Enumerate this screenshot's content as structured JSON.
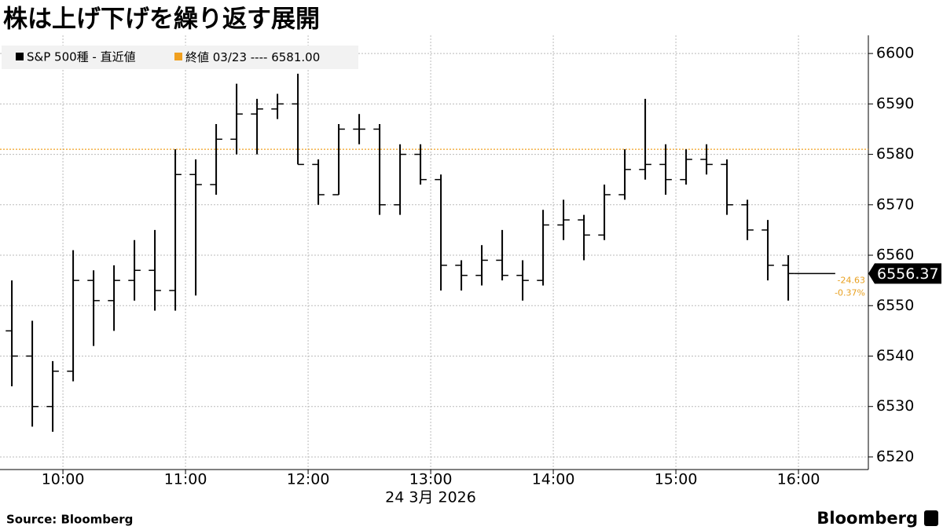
{
  "chart_data": {
    "type": "ohlc",
    "title": "株は上げ下げを繰り返す展開",
    "x_label": "24 3月 2026",
    "source": "Source:  Bloomberg",
    "brand": "Bloomberg",
    "xlim": [
      569.2,
      994.2
    ],
    "xticks": [
      {
        "value": 600,
        "label": "10:00"
      },
      {
        "value": 660,
        "label": "11:00"
      },
      {
        "value": 720,
        "label": "12:00"
      },
      {
        "value": 780,
        "label": "13:00"
      },
      {
        "value": 840,
        "label": "14:00"
      },
      {
        "value": 900,
        "label": "15:00"
      },
      {
        "value": 960,
        "label": "16:00"
      }
    ],
    "ylim": [
      6517.5,
      6603.6
    ],
    "yticks": [
      6520,
      6530,
      6540,
      6550,
      6560,
      6570,
      6580,
      6590,
      6600
    ],
    "grid": true,
    "series": [
      {
        "name": "S&P 500種 - 直近値",
        "color": "#000000",
        "x": [
          575,
          585,
          595,
          605,
          615,
          625,
          635,
          645,
          655,
          665,
          675,
          685,
          695,
          705,
          715,
          725,
          735,
          745,
          755,
          765,
          775,
          785,
          795,
          805,
          815,
          825,
          835,
          845,
          855,
          865,
          875,
          885,
          895,
          905,
          915,
          925,
          935,
          945,
          955
        ],
        "open": [
          6545,
          6540,
          6530,
          6537,
          6555,
          6551,
          6555,
          6557,
          6553,
          6576,
          6574,
          6583,
          6588,
          6589,
          6590,
          6578,
          6572,
          6585,
          6585,
          6570,
          6580,
          6575,
          6558,
          6556,
          6559,
          6556,
          6555,
          6566,
          6567,
          6564,
          6572,
          6577,
          6578,
          6575,
          6579,
          6578,
          6570,
          6565,
          6558
        ],
        "high": [
          6555,
          6547,
          6539,
          6561,
          6557,
          6558,
          6563,
          6565,
          6581,
          6579,
          6586,
          6594,
          6591,
          6592,
          6596,
          6579,
          6586,
          6588,
          6586,
          6582,
          6582,
          6576,
          6559,
          6562,
          6565,
          6559,
          6569,
          6571,
          6568,
          6574,
          6581,
          6591,
          6582,
          6581,
          6582,
          6579,
          6571,
          6567,
          6560
        ],
        "low": [
          6534,
          6526,
          6525,
          6535,
          6542,
          6545,
          6551,
          6549,
          6549,
          6552,
          6572,
          6580,
          6580,
          6587,
          6578,
          6570,
          6572,
          6582,
          6568,
          6568,
          6574,
          6553,
          6553,
          6554,
          6555,
          6551,
          6554,
          6563,
          6559,
          6563,
          6571,
          6575,
          6572,
          6574,
          6576,
          6568,
          6563,
          6555,
          6551
        ],
        "close": [
          6540,
          6530,
          6537,
          6555,
          6551,
          6555,
          6557,
          6553,
          6576,
          6574,
          6583,
          6588,
          6589,
          6590,
          6578,
          6572,
          6585,
          6585,
          6570,
          6580,
          6575,
          6558,
          6556,
          6559,
          6556,
          6555,
          6566,
          6567,
          6564,
          6572,
          6577,
          6578,
          6575,
          6579,
          6578,
          6570,
          6565,
          6558,
          6556.37
        ]
      }
    ],
    "reference_line": {
      "name": "終値 03/23 ----",
      "value": 6581,
      "value_label": "6581.00",
      "color": "#f0a020"
    },
    "last_value": 6556.37,
    "change": {
      "values": [
        -24.63,
        -0.37
      ],
      "value_labels": [
        "-24.63",
        "-0.37%"
      ]
    }
  }
}
